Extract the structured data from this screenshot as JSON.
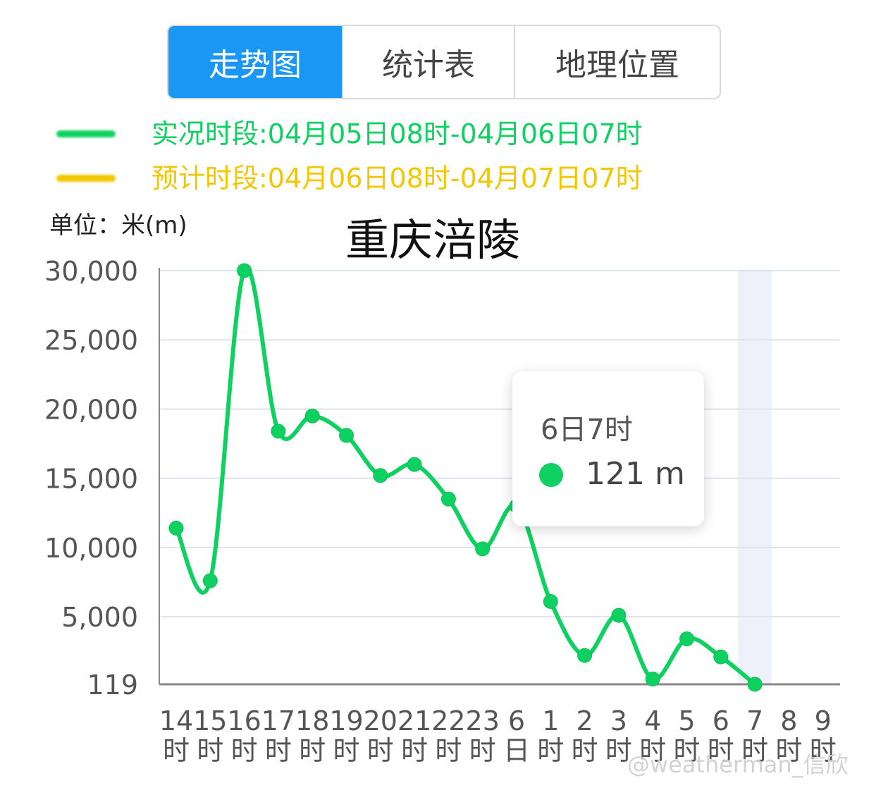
{
  "tabs": [
    {
      "label": "走势图",
      "active": true
    },
    {
      "label": "统计表",
      "active": false
    },
    {
      "label": "地理位置",
      "active": false
    }
  ],
  "legend": [
    {
      "label": "实况时段:04月05日08时-04月06日07时",
      "color": "#0fd161"
    },
    {
      "label": "预计时段:04月06日08时-04月07日07时",
      "color": "#f3c700"
    }
  ],
  "unit_label": "单位：米(m)",
  "tooltip": {
    "time": "6日7时",
    "value": "121 m",
    "color": "#0fd161"
  },
  "watermark": "@weatherman_信欣",
  "chart_data": {
    "type": "line",
    "title": "重庆涪陵",
    "ylabel": "",
    "xlabel": "",
    "ylim": [
      119,
      30000
    ],
    "yticks": [
      "30,000",
      "25,000",
      "20,000",
      "15,000",
      "10,000",
      "5,000",
      "119"
    ],
    "categories": [
      [
        "14",
        "时"
      ],
      [
        "15",
        "时"
      ],
      [
        "16",
        "时"
      ],
      [
        "17",
        "时"
      ],
      [
        "18",
        "时"
      ],
      [
        "19",
        "时"
      ],
      [
        "20",
        "时"
      ],
      [
        "21",
        "时"
      ],
      [
        "22",
        "时"
      ],
      [
        "23",
        "时"
      ],
      [
        "6",
        "日"
      ],
      [
        "1",
        "时"
      ],
      [
        "2",
        "时"
      ],
      [
        "3",
        "时"
      ],
      [
        "4",
        "时"
      ],
      [
        "5",
        "时"
      ],
      [
        "6",
        "时"
      ],
      [
        "7",
        "时"
      ],
      [
        "8",
        "时"
      ],
      [
        "9",
        "时"
      ]
    ],
    "series": [
      {
        "values": [
          11400,
          7600,
          30000,
          18400,
          19500,
          18100,
          15200,
          16000,
          13500,
          9900,
          13000,
          6100,
          2200,
          5100,
          500,
          3400,
          2100,
          121,
          null,
          null
        ],
        "color": "#0fd161"
      }
    ],
    "highlight_index": 17,
    "grid": true
  }
}
